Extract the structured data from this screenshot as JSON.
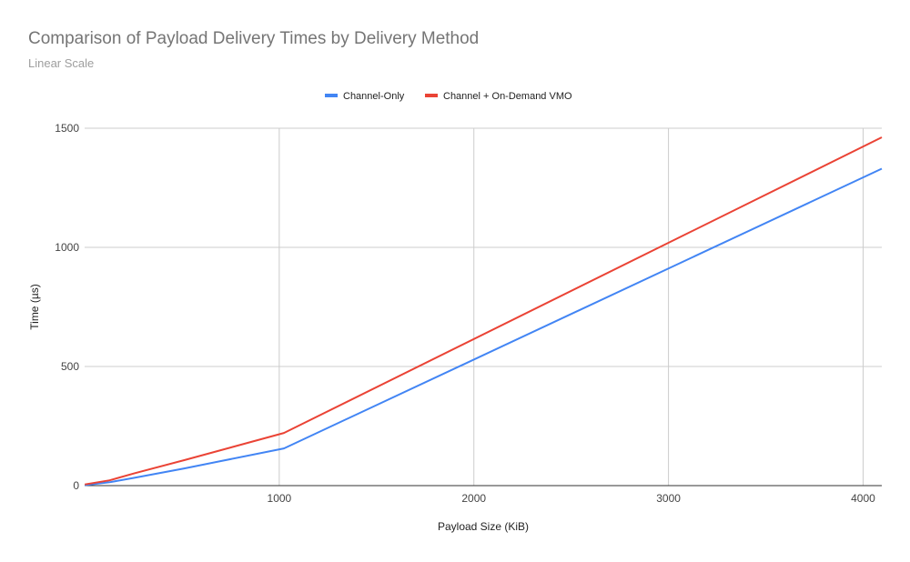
{
  "chart_data": {
    "type": "line",
    "title": "Comparison of Payload Delivery Times by Delivery Method",
    "subtitle": "Linear Scale",
    "xlabel": "Payload Size (KiB)",
    "ylabel": "Time (µs)",
    "xlim": [
      0,
      4096
    ],
    "ylim": [
      0,
      1500
    ],
    "xticks": [
      1000,
      2000,
      3000,
      4000
    ],
    "yticks": [
      0,
      500,
      1000,
      1500
    ],
    "grid": true,
    "legend": "top",
    "series": [
      {
        "name": "Channel-Only",
        "color": "#4285f4",
        "x": [
          1,
          128,
          256,
          512,
          1024,
          4096
        ],
        "y": [
          2,
          14,
          33,
          72,
          156,
          1330
        ]
      },
      {
        "name": "Channel + On-Demand VMO",
        "color": "#ea4335",
        "x": [
          1,
          128,
          256,
          512,
          1024,
          4096
        ],
        "y": [
          5,
          22,
          52,
          107,
          221,
          1462
        ]
      }
    ]
  }
}
